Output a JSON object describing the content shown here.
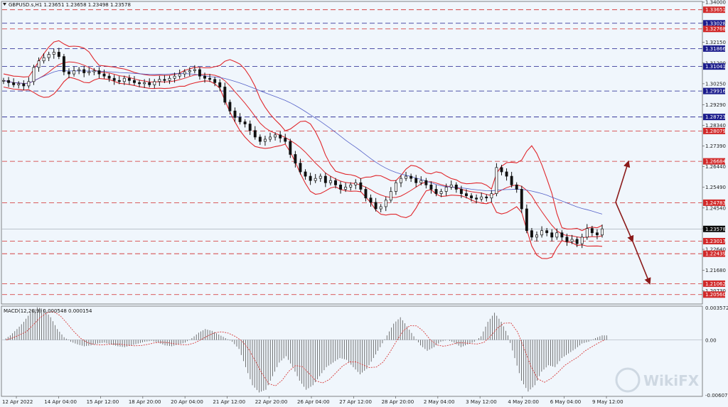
{
  "header": {
    "symbol_title": "GBPUSD.s,H1  1.23651 1.23658 1.23498 1.23578",
    "macd_title": "MACD(12,26,9) 0.000548 0.000154"
  },
  "watermark": "WikiFX",
  "colors": {
    "background": "#f0f6fc",
    "candle": "#111111",
    "bollinger": "#e0262b",
    "moving_average": "#5561c8",
    "resistance_line": "#d12a2a",
    "key_line": "#1b1c8c",
    "price_label": "#0b0b0b",
    "arrow": "#8b1a1a",
    "macd_hist": "#555555",
    "macd_signal": "#d83c3c"
  },
  "chart_data": [
    {
      "type": "candlestick",
      "title": "GBPUSD.s,H1",
      "ylim": [
        1.2016,
        1.34
      ],
      "y_ticks": [
        "1.34000",
        "1.33050",
        "1.32150",
        "1.31200",
        "1.30250",
        "1.29290",
        "1.28340",
        "1.27390",
        "1.26440",
        "1.25490",
        "1.24540",
        "1.23590",
        "1.22640",
        "1.21680",
        "1.20730"
      ],
      "x_labels": [
        "12 Apr 2022",
        "14 Apr 04:00",
        "15 Apr 12:00",
        "18 Apr 20:00",
        "20 Apr 04:00",
        "21 Apr 12:00",
        "22 Apr 20:00",
        "26 Apr 04:00",
        "27 Apr 12:00",
        "28 Apr 20:00",
        "2 May 04:00",
        "3 May 12:00",
        "4 May 20:00",
        "6 May 04:00",
        "9 May 12:00"
      ],
      "last_price": "1.23578",
      "close_path": [
        1.304,
        1.303,
        1.302,
        1.3025,
        1.3015,
        1.3035,
        1.31,
        1.313,
        1.3145,
        1.316,
        1.317,
        1.315,
        1.308,
        1.307,
        1.3085,
        1.309,
        1.3075,
        1.308,
        1.3085,
        1.307,
        1.306,
        1.305,
        1.304,
        1.3035,
        1.305,
        1.304,
        1.303,
        1.3025,
        1.303,
        1.302,
        1.3035,
        1.3045,
        1.304,
        1.305,
        1.306,
        1.307,
        1.308,
        1.3085,
        1.309,
        1.306,
        1.305,
        1.3045,
        1.303,
        1.301,
        1.294,
        1.29,
        1.287,
        1.285,
        1.284,
        1.281,
        1.278,
        1.276,
        1.277,
        1.278,
        1.279,
        1.2775,
        1.276,
        1.27,
        1.266,
        1.262,
        1.26,
        1.258,
        1.259,
        1.26,
        1.257,
        1.258,
        1.256,
        1.254,
        1.255,
        1.256,
        1.257,
        1.254,
        1.25,
        1.248,
        1.245,
        1.246,
        1.249,
        1.253,
        1.257,
        1.259,
        1.26,
        1.259,
        1.257,
        1.258,
        1.256,
        1.254,
        1.252,
        1.253,
        1.255,
        1.256,
        1.254,
        1.252,
        1.251,
        1.25,
        1.2495,
        1.2505,
        1.25,
        1.252,
        1.264,
        1.262,
        1.26,
        1.256,
        1.254,
        1.245,
        1.235,
        1.232,
        1.233,
        1.235,
        1.234,
        1.232,
        1.234,
        1.232,
        1.23,
        1.231,
        1.229,
        1.232,
        1.236,
        1.234,
        1.233,
        1.2358
      ],
      "horizontal_levels": [
        {
          "value": 1.33651,
          "label": "1.33651",
          "kind": "resistance"
        },
        {
          "value": 1.33028,
          "label": "1.33028",
          "kind": "key"
        },
        {
          "value": 1.32768,
          "label": "1.32768",
          "kind": "resistance"
        },
        {
          "value": 1.31866,
          "label": "1.31866",
          "kind": "key"
        },
        {
          "value": 1.31041,
          "label": "1.31041",
          "kind": "key"
        },
        {
          "value": 1.29916,
          "label": "1.29916",
          "kind": "key"
        },
        {
          "value": 1.28723,
          "label": "1.28723",
          "kind": "key"
        },
        {
          "value": 1.28079,
          "label": "1.28079",
          "kind": "resistance"
        },
        {
          "value": 1.26684,
          "label": "1.26684",
          "kind": "resistance"
        },
        {
          "value": 1.24783,
          "label": "1.24783",
          "kind": "resistance"
        },
        {
          "value": 1.23017,
          "label": "1.23017",
          "kind": "resistance"
        },
        {
          "value": 1.22439,
          "label": "1.22439",
          "kind": "resistance"
        },
        {
          "value": 1.21062,
          "label": "1.21062",
          "kind": "resistance"
        },
        {
          "value": 1.2056,
          "label": "1.20560",
          "kind": "resistance"
        }
      ],
      "projection_arrows": [
        {
          "from": 1.248,
          "to": 1.2668,
          "direction": "up"
        },
        {
          "from": 1.248,
          "to": 1.23,
          "direction": "down"
        },
        {
          "from": 1.23,
          "to": 1.2106,
          "direction": "down"
        }
      ]
    },
    {
      "type": "macd",
      "title": "MACD(12,26,9)",
      "y_ticks": [
        "0.003572",
        "0.00",
        "-0.006072"
      ],
      "ylim": [
        -0.006072,
        0.003572
      ],
      "histogram": [
        0.0,
        0.0005,
        0.0012,
        0.002,
        0.003,
        0.0036,
        0.0034,
        0.0025,
        0.0012,
        0.0003,
        -0.0002,
        -0.0005,
        -0.0007,
        -0.0006,
        -0.0004,
        -0.0003,
        -0.0005,
        -0.0007,
        -0.0008,
        -0.0006,
        -0.0004,
        -0.0002,
        -0.0001,
        -0.0003,
        -0.0006,
        -0.0007,
        -0.0005,
        -0.0003,
        0.0002,
        0.0008,
        0.0012,
        0.001,
        0.0006,
        0.0002,
        -0.0002,
        -0.001,
        -0.003,
        -0.005,
        -0.0058,
        -0.0055,
        -0.004,
        -0.0025,
        -0.0018,
        -0.003,
        -0.0045,
        -0.0055,
        -0.005,
        -0.004,
        -0.003,
        -0.0025,
        -0.002,
        -0.0022,
        -0.003,
        -0.0038,
        -0.0032,
        -0.002,
        -0.0008,
        0.0005,
        0.0018,
        0.0025,
        0.0015,
        0.0004,
        -0.0006,
        -0.0012,
        -0.0008,
        -0.0002,
        0.0,
        -0.0003,
        -0.0008,
        -0.0005,
        -0.0002,
        0.0004,
        0.002,
        0.003,
        0.002,
        0.0005,
        -0.002,
        -0.0045,
        -0.0057,
        -0.005,
        -0.0035,
        -0.0028,
        -0.003,
        -0.002,
        -0.0015,
        -0.001,
        -0.0004,
        -0.0002,
        0.0002,
        0.0005
      ]
    }
  ]
}
